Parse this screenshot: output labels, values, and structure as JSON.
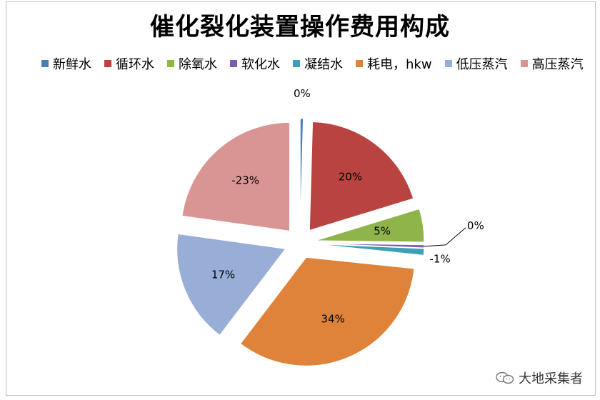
{
  "chart_data": {
    "type": "pie",
    "title": "催化裂化装置操作费用构成",
    "series": [
      {
        "name": "新鲜水",
        "value": 0,
        "label": "0%",
        "color": "#4a7ebb"
      },
      {
        "name": "循环水",
        "value": 20,
        "label": "20%",
        "color": "#b84341"
      },
      {
        "name": "除氧水",
        "value": 5,
        "label": "5%",
        "color": "#8fb54a"
      },
      {
        "name": "软化水",
        "value": 0,
        "label": "0%",
        "color": "#7d5fa8"
      },
      {
        "name": "凝结水",
        "value": 1,
        "label": "-1%",
        "color": "#3ea0b6"
      },
      {
        "name": "耗电，hkw",
        "value": 34,
        "label": "34%",
        "color": "#e0833a"
      },
      {
        "name": "低压蒸汽",
        "value": 17,
        "label": "17%",
        "color": "#98aed6"
      },
      {
        "name": "高压蒸汽",
        "value": 23,
        "label": "-23%",
        "color": "#d99594"
      }
    ],
    "legend_position": "top"
  },
  "watermark": {
    "text": "大地采集者",
    "icon": "wechat-icon"
  }
}
